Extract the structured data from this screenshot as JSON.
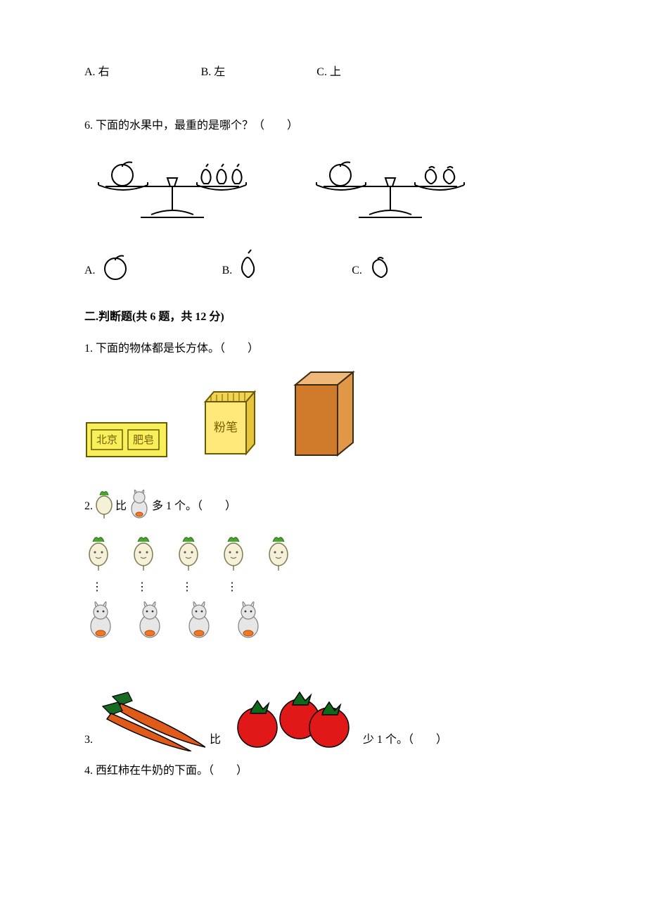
{
  "q5_options": {
    "a_prefix": "A.",
    "a_text": "右",
    "b_prefix": "B.",
    "b_text": "左",
    "c_prefix": "C.",
    "c_text": "上"
  },
  "q6": {
    "number": "6.",
    "text": "下面的水果中，最重的是哪个？（　　）",
    "scales": [
      {
        "left_items": {
          "type": "apple",
          "count": 1
        },
        "right_items": {
          "type": "pear",
          "count": 3
        },
        "stroke": "#000000"
      },
      {
        "left_items": {
          "type": "apple",
          "count": 1
        },
        "right_items": {
          "type": "peach",
          "count": 2
        },
        "stroke": "#000000"
      }
    ],
    "options": {
      "a_prefix": "A.",
      "a_icon": "apple",
      "b_prefix": "B.",
      "b_icon": "pear",
      "c_prefix": "C.",
      "c_icon": "peach"
    }
  },
  "section2": {
    "heading": "二.判断题(共 6 题，共 12 分)"
  },
  "s2q1": {
    "number": "1.",
    "text": "下面的物体都是长方体。（　　）",
    "boxes": {
      "soap": {
        "label_left": "北京",
        "label_right": "肥皂",
        "fill": "#f8f05a",
        "stroke": "#6b5a00",
        "text_color": "#7a5d00"
      },
      "chalk": {
        "label": "粉笔",
        "body_fill": "#ffe97a",
        "top_fill": "#f0d452",
        "stroke": "#6b5a00",
        "text_color": "#7a5d00"
      },
      "brick": {
        "front_fill": "#d07a2b",
        "side_fill": "#e09848",
        "top_fill": "#f0b878",
        "stroke": "#3a2a10"
      }
    }
  },
  "s2q2": {
    "number": "2.",
    "text_parts": {
      "p1": "比",
      "p2": "多 1 个。（　　）"
    },
    "radish": {
      "count_row": 5,
      "leaf_color": "#4aa82e",
      "body_color": "#f5f0d8",
      "outline": "#7a7a50"
    },
    "rabbit": {
      "count_row": 4,
      "body_color": "#e6e6e6",
      "carrot_color": "#f07820",
      "outline": "#808080"
    },
    "dots": "⋮"
  },
  "s2q3": {
    "number": "3.",
    "text_parts": {
      "p1": "比",
      "p2": "少 1 个。（　　）"
    },
    "carrots": {
      "count": 2,
      "body_color": "#e05a1a",
      "leaf_color": "#166a22",
      "outline": "#000000"
    },
    "tomatoes": {
      "count": 3,
      "body_color": "#e01818",
      "leaf_color": "#0e6a18",
      "outline": "#000000"
    }
  },
  "s2q4": {
    "number": "4.",
    "text": "西红柿在牛奶的下面。（　　）"
  },
  "colors": {
    "page_bg": "#ffffff",
    "text": "#000000"
  }
}
